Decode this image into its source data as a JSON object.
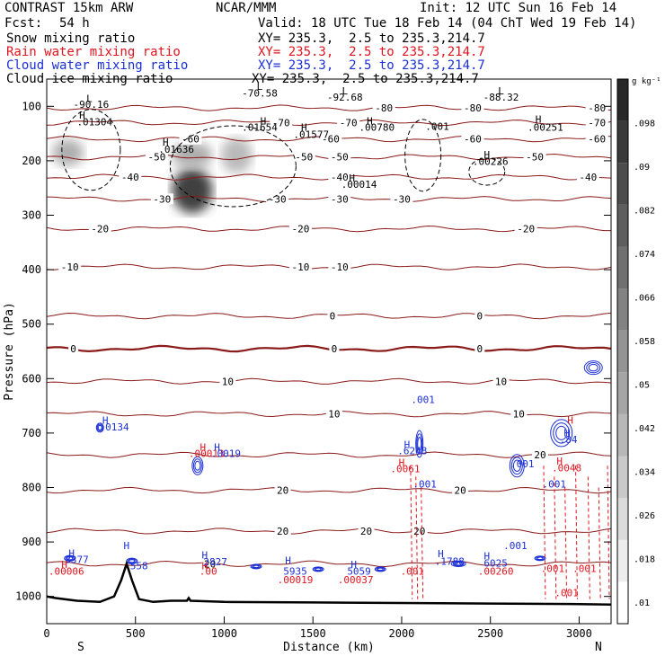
{
  "header": {
    "model": "CONTRAST 15km ARW",
    "org": "NCAR/MMM",
    "init": "Init: 12 UTC Sun 16 Feb 14",
    "fcst_label": "Fcst:",
    "fcst_value": "54 h",
    "valid": "Valid: 18 UTC Tue 18 Feb 14 (04 ChT Wed 19 Feb 14)"
  },
  "legend": [
    {
      "name": "Snow mixing ratio",
      "xy": "XY= 235.3,  2.5 to 235.3,214.7",
      "color": "#000000"
    },
    {
      "name": "Rain water mixing ratio",
      "xy": "XY= 235.3,  2.5 to 235.3,214.7",
      "color": "#e0141e"
    },
    {
      "name": "Cloud water mixing ratio",
      "xy": "XY= 235.3,  2.5 to 235.3,214.7",
      "color": "#1a2fd6"
    },
    {
      "name": "Cloud ice mixing ratio",
      "xy": "XY= 235.3,  2.5 to 235.3,214.7",
      "color": "#000000"
    }
  ],
  "chart_data": {
    "type": "cross-section",
    "xlabel": "Distance (km)",
    "ylabel": "Pressure (hPa)",
    "xlim": [
      0,
      3180
    ],
    "ylim": [
      1050,
      50
    ],
    "x_ticks": [
      0,
      500,
      1000,
      1500,
      2000,
      2500,
      3000
    ],
    "y_ticks": [
      100,
      200,
      300,
      400,
      500,
      600,
      700,
      800,
      900,
      1000
    ],
    "end_labels": {
      "left": "S",
      "right": "N"
    },
    "colorbar": {
      "unit": "g kg⁻¹",
      "ticks": [
        ".01",
        ".018",
        ".026",
        ".034",
        ".042",
        ".05",
        ".058",
        ".066",
        ".074",
        ".082",
        ".09",
        ".098"
      ],
      "tick_values": [
        0.01,
        0.018,
        0.026,
        0.034,
        0.042,
        0.05,
        0.058,
        0.066,
        0.074,
        0.082,
        0.09,
        0.098
      ],
      "min": 0.006,
      "max": 0.106
    },
    "temperature_isotherms": [
      {
        "value": -80,
        "p": 103,
        "labels": [
          {
            "text": "-80",
            "x": 3100
          },
          {
            "text": "-80",
            "x": 1900
          },
          {
            "text": "-80",
            "x": 2400
          }
        ]
      },
      {
        "value": -70,
        "p": 130,
        "labels": [
          {
            "text": "-70",
            "x": 1320
          },
          {
            "text": "-70",
            "x": 1700
          },
          {
            "text": "-70",
            "x": 3100
          }
        ]
      },
      {
        "value": -60,
        "p": 160,
        "labels": [
          {
            "text": "-60",
            "x": 810
          },
          {
            "text": "-60",
            "x": 1600
          },
          {
            "text": "-60",
            "x": 2400
          },
          {
            "text": "-60",
            "x": 3100
          }
        ]
      },
      {
        "value": -50,
        "p": 193,
        "labels": [
          {
            "text": "-50",
            "x": 620
          },
          {
            "text": "-50",
            "x": 1450
          },
          {
            "text": "-50",
            "x": 1650
          },
          {
            "text": "-50",
            "x": 2750
          }
        ]
      },
      {
        "value": -40,
        "p": 230,
        "labels": [
          {
            "text": "-40",
            "x": 470
          },
          {
            "text": "-40",
            "x": 1650
          },
          {
            "text": "-40",
            "x": 3050
          }
        ]
      },
      {
        "value": -30,
        "p": 270,
        "labels": [
          {
            "text": "-30",
            "x": 650
          },
          {
            "text": "-30",
            "x": 1300
          },
          {
            "text": "-30",
            "x": 1650
          },
          {
            "text": "-30",
            "x": 2000
          }
        ]
      },
      {
        "value": -20,
        "p": 325,
        "labels": [
          {
            "text": "-20",
            "x": 300
          },
          {
            "text": "-20",
            "x": 1430
          },
          {
            "text": "-20",
            "x": 2700
          }
        ]
      },
      {
        "value": -10,
        "p": 395,
        "labels": [
          {
            "text": "-10",
            "x": 130
          },
          {
            "text": "-10",
            "x": 1430
          },
          {
            "text": "-10",
            "x": 1650
          }
        ]
      },
      {
        "value": 0,
        "p": 485,
        "labels": [
          {
            "text": "0",
            "x": 1610
          },
          {
            "text": "0",
            "x": 2440
          }
        ]
      },
      {
        "value": 0,
        "p": 545,
        "bold": true,
        "labels": [
          {
            "text": "0",
            "x": 150
          },
          {
            "text": "0",
            "x": 1620
          },
          {
            "text": "0",
            "x": 2440
          }
        ]
      },
      {
        "value": 10,
        "p": 605,
        "labels": [
          {
            "text": "10",
            "x": 2560
          },
          {
            "text": "10",
            "x": 1020
          }
        ]
      },
      {
        "value": 10,
        "p": 665,
        "labels": [
          {
            "text": "10",
            "x": 1620
          },
          {
            "text": "10",
            "x": 2660
          }
        ]
      },
      {
        "value": 20,
        "p": 740,
        "labels": [
          {
            "text": "20",
            "x": 2780
          }
        ]
      },
      {
        "value": 20,
        "p": 805,
        "labels": [
          {
            "text": "20",
            "x": 1330
          },
          {
            "text": "20",
            "x": 2330
          }
        ]
      },
      {
        "value": 20,
        "p": 880,
        "labels": [
          {
            "text": "20",
            "x": 1330
          },
          {
            "text": "20",
            "x": 1800
          },
          {
            "text": "20",
            "x": 2100
          }
        ]
      },
      {
        "value": 20,
        "p": 940,
        "labels": [
          {
            "text": "20",
            "x": 920
          }
        ]
      }
    ],
    "annotations": [
      {
        "text": "L",
        "x": 240,
        "p": 92,
        "color": "#000000"
      },
      {
        "text": "-90.16",
        "x": 250,
        "p": 103,
        "color": "#000000"
      },
      {
        "text": "H",
        "x": 200,
        "p": 123,
        "color": "#000000"
      },
      {
        "text": ".01304",
        "x": 270,
        "p": 135,
        "color": "#000000"
      },
      {
        "text": "L",
        "x": 1200,
        "p": 70,
        "color": "#000000"
      },
      {
        "text": "-70.58",
        "x": 1200,
        "p": 82,
        "color": "#000000"
      },
      {
        "text": "L",
        "x": 1680,
        "p": 78,
        "color": "#000000"
      },
      {
        "text": "-92.68",
        "x": 1680,
        "p": 90,
        "color": "#000000"
      },
      {
        "text": "L",
        "x": 2560,
        "p": 78,
        "color": "#000000"
      },
      {
        "text": "-88.32",
        "x": 2560,
        "p": 90,
        "color": "#000000"
      },
      {
        "text": "H",
        "x": 1220,
        "p": 133,
        "color": "#000000"
      },
      {
        "text": ".01654",
        "x": 1200,
        "p": 145,
        "color": "#000000"
      },
      {
        "text": "H",
        "x": 1450,
        "p": 145,
        "color": "#000000"
      },
      {
        "text": ".01577",
        "x": 1490,
        "p": 158,
        "color": "#000000"
      },
      {
        "text": "H",
        "x": 1820,
        "p": 133,
        "color": "#000000"
      },
      {
        "text": ".00780",
        "x": 1860,
        "p": 145,
        "color": "#000000"
      },
      {
        "text": ".001",
        "x": 2200,
        "p": 143,
        "color": "#000000"
      },
      {
        "text": "H",
        "x": 2770,
        "p": 130,
        "color": "#000000"
      },
      {
        "text": ".00251",
        "x": 2810,
        "p": 145,
        "color": "#000000"
      },
      {
        "text": "H",
        "x": 670,
        "p": 172,
        "color": "#000000"
      },
      {
        "text": ".01636",
        "x": 730,
        "p": 185,
        "color": "#000000"
      },
      {
        "text": "H",
        "x": 2480,
        "p": 195,
        "color": "#000000"
      },
      {
        "text": ".00226",
        "x": 2500,
        "p": 208,
        "color": "#000000"
      },
      {
        "text": "H",
        "x": 1720,
        "p": 238,
        "color": "#000000"
      },
      {
        "text": ".00014",
        "x": 1760,
        "p": 250,
        "color": "#000000"
      },
      {
        "text": "H",
        "x": 330,
        "p": 683,
        "color": "#1a2fd6"
      },
      {
        "text": ".0134",
        "x": 380,
        "p": 695,
        "color": "#1a2fd6"
      },
      {
        "text": "H",
        "x": 880,
        "p": 732,
        "color": "#e0141e"
      },
      {
        "text": ".00013",
        "x": 900,
        "p": 744,
        "color": "#e0141e"
      },
      {
        "text": "H",
        "x": 960,
        "p": 732,
        "color": "#1a2fd6"
      },
      {
        "text": ".0019",
        "x": 1010,
        "p": 744,
        "color": "#1a2fd6"
      },
      {
        "text": "H",
        "x": 2030,
        "p": 727,
        "color": "#1a2fd6"
      },
      {
        "text": ".6248",
        "x": 2060,
        "p": 739,
        "color": "#1a2fd6"
      },
      {
        "text": "H",
        "x": 2000,
        "p": 760,
        "color": "#e0141e"
      },
      {
        "text": ".0061",
        "x": 2020,
        "p": 772,
        "color": "#e0141e"
      },
      {
        "text": ".001",
        "x": 2120,
        "p": 645,
        "color": "#1a2fd6"
      },
      {
        "text": ".001",
        "x": 2130,
        "p": 800,
        "color": "#1a2fd6"
      },
      {
        "text": "H",
        "x": 2950,
        "p": 683,
        "color": "#e0141e"
      },
      {
        "text": "H",
        "x": 2930,
        "p": 706,
        "color": "#1a2fd6"
      },
      {
        "text": ".84",
        "x": 2940,
        "p": 718,
        "color": "#1a2fd6"
      },
      {
        "text": "H",
        "x": 2890,
        "p": 758,
        "color": "#e0141e"
      },
      {
        "text": ".0048",
        "x": 2930,
        "p": 770,
        "color": "#e0141e"
      },
      {
        "text": ".001",
        "x": 2680,
        "p": 763,
        "color": "#1a2fd6"
      },
      {
        "text": ".001",
        "x": 2860,
        "p": 800,
        "color": "#1a2fd6"
      },
      {
        "text": "H",
        "x": 140,
        "p": 927,
        "color": "#1a2fd6"
      },
      {
        "text": "3377",
        "x": 170,
        "p": 939,
        "color": "#1a2fd6"
      },
      {
        "text": "H",
        "x": 100,
        "p": 948,
        "color": "#e0141e"
      },
      {
        "text": ".00006",
        "x": 110,
        "p": 960,
        "color": "#e0141e"
      },
      {
        "text": "H",
        "x": 450,
        "p": 913,
        "color": "#1a2fd6"
      },
      {
        "text": "558",
        "x": 520,
        "p": 950,
        "color": "#1a2fd6"
      },
      {
        "text": "H",
        "x": 890,
        "p": 930,
        "color": "#1a2fd6"
      },
      {
        "text": "2827",
        "x": 950,
        "p": 943,
        "color": "#1a2fd6"
      },
      {
        "text": "H",
        "x": 890,
        "p": 950,
        "color": "#e0141e"
      },
      {
        "text": ".00",
        "x": 910,
        "p": 960,
        "color": "#e0141e"
      },
      {
        "text": "H",
        "x": 1360,
        "p": 940,
        "color": "#1a2fd6"
      },
      {
        "text": "5935",
        "x": 1400,
        "p": 960,
        "color": "#1a2fd6"
      },
      {
        "text": ".00019",
        "x": 1400,
        "p": 976,
        "color": "#e0141e"
      },
      {
        "text": "H",
        "x": 1730,
        "p": 948,
        "color": "#1a2fd6"
      },
      {
        "text": "5059",
        "x": 1760,
        "p": 960,
        "color": "#1a2fd6"
      },
      {
        "text": ".00037",
        "x": 1740,
        "p": 976,
        "color": "#e0141e"
      },
      {
        "text": "H",
        "x": 2220,
        "p": 928,
        "color": "#1a2fd6"
      },
      {
        "text": ".1788",
        "x": 2270,
        "p": 942,
        "color": "#1a2fd6"
      },
      {
        "text": ".001",
        "x": 2060,
        "p": 960,
        "color": "#e0141e"
      },
      {
        "text": "H",
        "x": 2480,
        "p": 932,
        "color": "#1a2fd6"
      },
      {
        "text": "6025",
        "x": 2530,
        "p": 945,
        "color": "#1a2fd6"
      },
      {
        "text": ".00260",
        "x": 2530,
        "p": 960,
        "color": "#e0141e"
      },
      {
        "text": ".001",
        "x": 2640,
        "p": 913,
        "color": "#1a2fd6"
      },
      {
        "text": ".001",
        "x": 2850,
        "p": 955,
        "color": "#e0141e"
      },
      {
        "text": ".001",
        "x": 3030,
        "p": 955,
        "color": "#e0141e"
      },
      {
        "text": ".001",
        "x": 2930,
        "p": 1000,
        "color": "#e0141e"
      }
    ],
    "snow_shading": [
      {
        "x": 120,
        "p": 185,
        "dx": 35,
        "dp": 30,
        "v": 0.035
      },
      {
        "x": 820,
        "p": 255,
        "dx": 45,
        "dp": 50,
        "v": 0.085
      },
      {
        "x": 1070,
        "p": 190,
        "dx": 35,
        "dp": 40,
        "v": 0.03
      },
      {
        "x": 820,
        "p": 190,
        "dx": 45,
        "dp": 30,
        "v": 0.035
      }
    ],
    "terrain_km": [
      [
        0,
        1000
      ],
      [
        50,
        1003
      ],
      [
        100,
        1005
      ],
      [
        170,
        1008
      ],
      [
        300,
        1010
      ],
      [
        380,
        1000
      ],
      [
        420,
        970
      ],
      [
        450,
        940
      ],
      [
        480,
        970
      ],
      [
        520,
        1005
      ],
      [
        600,
        1010
      ],
      [
        700,
        1008
      ],
      [
        790,
        1008
      ],
      [
        800,
        1003
      ],
      [
        810,
        1008
      ],
      [
        1000,
        1010
      ],
      [
        1500,
        1011
      ],
      [
        2000,
        1012
      ],
      [
        2500,
        1013
      ],
      [
        3000,
        1014
      ],
      [
        3180,
        1015
      ]
    ]
  }
}
